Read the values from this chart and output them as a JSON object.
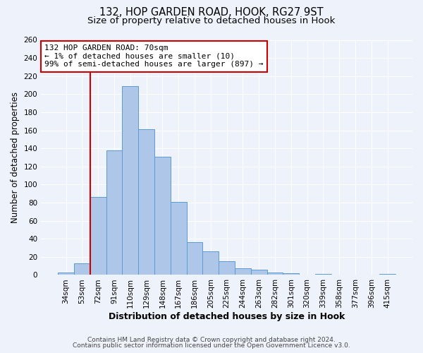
{
  "title1": "132, HOP GARDEN ROAD, HOOK, RG27 9ST",
  "title2": "Size of property relative to detached houses in Hook",
  "xlabel": "Distribution of detached houses by size in Hook",
  "ylabel": "Number of detached properties",
  "categories": [
    "34sqm",
    "53sqm",
    "72sqm",
    "91sqm",
    "110sqm",
    "129sqm",
    "148sqm",
    "167sqm",
    "186sqm",
    "205sqm",
    "225sqm",
    "244sqm",
    "263sqm",
    "282sqm",
    "301sqm",
    "320sqm",
    "339sqm",
    "358sqm",
    "377sqm",
    "396sqm",
    "415sqm"
  ],
  "values": [
    3,
    13,
    86,
    138,
    209,
    161,
    131,
    81,
    36,
    26,
    15,
    7,
    6,
    3,
    2,
    0,
    1,
    0,
    0,
    0,
    1
  ],
  "bar_color": "#aec6e8",
  "bar_edge_color": "#5b9bd5",
  "ylim": [
    0,
    260
  ],
  "yticks": [
    0,
    20,
    40,
    60,
    80,
    100,
    120,
    140,
    160,
    180,
    200,
    220,
    240,
    260
  ],
  "vline_index": 2,
  "vline_color": "#cc0000",
  "annotation_line1": "132 HOP GARDEN ROAD: 70sqm",
  "annotation_line2": "← 1% of detached houses are smaller (10)",
  "annotation_line3": "99% of semi-detached houses are larger (897) →",
  "annotation_box_color": "#ffffff",
  "annotation_box_edge": "#cc0000",
  "footer1": "Contains HM Land Registry data © Crown copyright and database right 2024.",
  "footer2": "Contains public sector information licensed under the Open Government Licence v3.0.",
  "background_color": "#eef2fa",
  "grid_color": "#ffffff",
  "title1_fontsize": 10.5,
  "title2_fontsize": 9.5,
  "xlabel_fontsize": 9,
  "ylabel_fontsize": 8.5,
  "tick_fontsize": 7.5,
  "footer_fontsize": 6.5,
  "annotation_fontsize": 8
}
